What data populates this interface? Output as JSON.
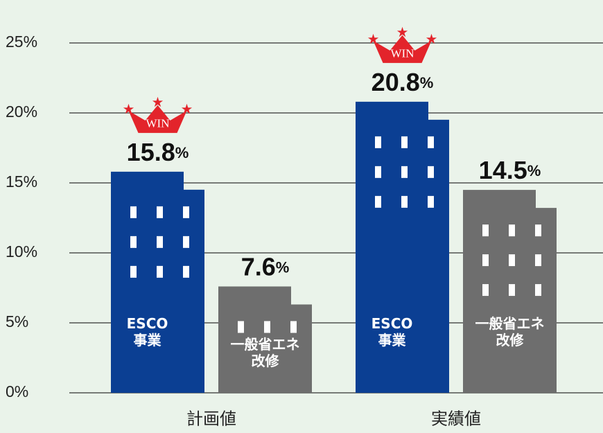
{
  "chart_data": {
    "type": "bar",
    "categories": [
      "計画値",
      "実績値"
    ],
    "series": [
      {
        "name": "ESCO事業",
        "color": "#0b3f93",
        "values": [
          15.8,
          20.8
        ],
        "value_labels": [
          "15.8%",
          "20.8%"
        ]
      },
      {
        "name": "一般省エネ改修",
        "color": "#6e6e6e",
        "values": [
          7.6,
          14.5
        ],
        "value_labels": [
          "7.6%",
          "14.5%"
        ]
      }
    ],
    "ylim": [
      0,
      25
    ],
    "yticks": [
      {
        "value": 0,
        "label": "0%"
      },
      {
        "value": 5,
        "label": "5%"
      },
      {
        "value": 10,
        "label": "10%"
      },
      {
        "value": 15,
        "label": "15%"
      },
      {
        "value": 20,
        "label": "20%"
      },
      {
        "value": 25,
        "label": "25%"
      }
    ],
    "grid": true,
    "annotations": [
      "WIN",
      "WIN"
    ]
  }
}
